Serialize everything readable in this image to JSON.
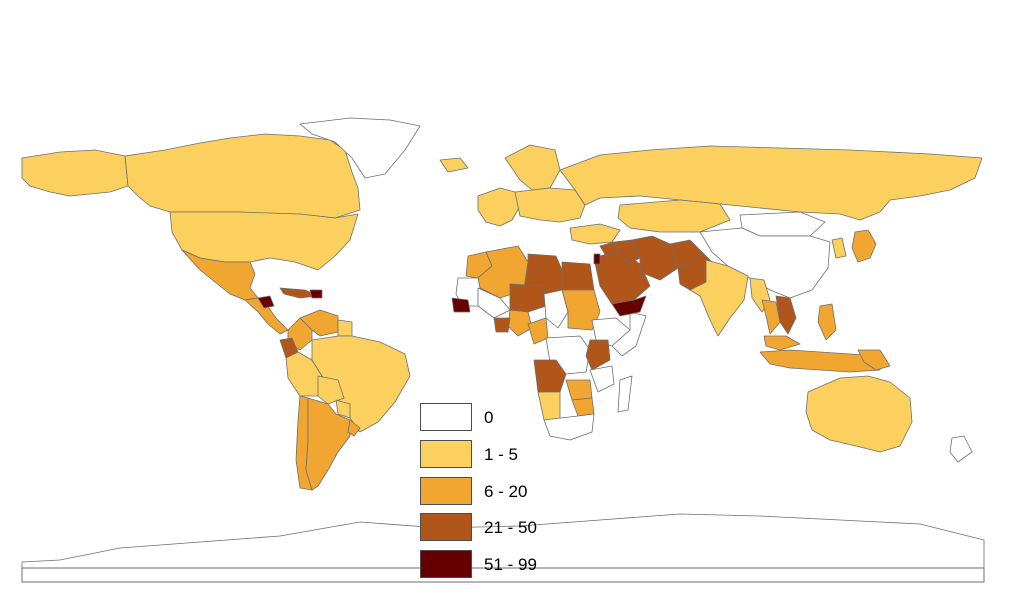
{
  "map": {
    "classes": [
      {
        "label": "0",
        "color": "#ffffff"
      },
      {
        "label": "1 - 5",
        "color": "#fcd05e"
      },
      {
        "label": "6 - 20",
        "color": "#f2a632"
      },
      {
        "label": "21 - 50",
        "color": "#b0561a"
      },
      {
        "label": "51 - 99",
        "color": "#660000"
      }
    ],
    "border_color": "#6e6e6e",
    "regions": [
      {
        "name": "Alaska",
        "class": 1
      },
      {
        "name": "Canada",
        "class": 1
      },
      {
        "name": "Greenland",
        "class": 0
      },
      {
        "name": "United States",
        "class": 1
      },
      {
        "name": "Mexico",
        "class": 2
      },
      {
        "name": "Central America",
        "class": 2
      },
      {
        "name": "Guatemala",
        "class": 4
      },
      {
        "name": "Cuba",
        "class": 3
      },
      {
        "name": "Haiti",
        "class": 4
      },
      {
        "name": "Colombia",
        "class": 2
      },
      {
        "name": "Venezuela",
        "class": 2
      },
      {
        "name": "Guyana",
        "class": 1
      },
      {
        "name": "Ecuador",
        "class": 3
      },
      {
        "name": "Peru",
        "class": 1
      },
      {
        "name": "Brazil",
        "class": 1
      },
      {
        "name": "Bolivia",
        "class": 1
      },
      {
        "name": "Paraguay",
        "class": 1
      },
      {
        "name": "Chile",
        "class": 2
      },
      {
        "name": "Argentina",
        "class": 2
      },
      {
        "name": "Uruguay",
        "class": 2
      },
      {
        "name": "Iceland",
        "class": 1
      },
      {
        "name": "Western Europe",
        "class": 1
      },
      {
        "name": "Scandinavia",
        "class": 1
      },
      {
        "name": "Eastern Europe",
        "class": 1
      },
      {
        "name": "Russia",
        "class": 1
      },
      {
        "name": "Kazakhstan",
        "class": 1
      },
      {
        "name": "Mongolia",
        "class": 0
      },
      {
        "name": "China",
        "class": 0
      },
      {
        "name": "Korea",
        "class": 1
      },
      {
        "name": "Japan",
        "class": 2
      },
      {
        "name": "Morocco",
        "class": 2
      },
      {
        "name": "Algeria",
        "class": 2
      },
      {
        "name": "Libya",
        "class": 3
      },
      {
        "name": "Egypt",
        "class": 3
      },
      {
        "name": "Mauritania",
        "class": 0
      },
      {
        "name": "Mali",
        "class": 0
      },
      {
        "name": "Senegal",
        "class": 4
      },
      {
        "name": "Niger",
        "class": 3
      },
      {
        "name": "Chad",
        "class": 0
      },
      {
        "name": "Sudan",
        "class": 2
      },
      {
        "name": "Ethiopia",
        "class": 0
      },
      {
        "name": "Somalia",
        "class": 0
      },
      {
        "name": "Nigeria",
        "class": 2
      },
      {
        "name": "Ghana",
        "class": 3
      },
      {
        "name": "Cameroon",
        "class": 2
      },
      {
        "name": "DR Congo",
        "class": 0
      },
      {
        "name": "Kenya",
        "class": 3
      },
      {
        "name": "Tanzania",
        "class": 0
      },
      {
        "name": "Angola",
        "class": 3
      },
      {
        "name": "Zambia",
        "class": 2
      },
      {
        "name": "Zimbabwe",
        "class": 2
      },
      {
        "name": "Namibia",
        "class": 1
      },
      {
        "name": "South Africa",
        "class": 0
      },
      {
        "name": "Madagascar",
        "class": 0
      },
      {
        "name": "Saudi Arabia",
        "class": 3
      },
      {
        "name": "Yemen",
        "class": 4
      },
      {
        "name": "Israel",
        "class": 4
      },
      {
        "name": "Syria",
        "class": 3
      },
      {
        "name": "Turkey",
        "class": 1
      },
      {
        "name": "Iraq",
        "class": 3
      },
      {
        "name": "Iran",
        "class": 3
      },
      {
        "name": "Afghanistan",
        "class": 3
      },
      {
        "name": "Pakistan",
        "class": 3
      },
      {
        "name": "India",
        "class": 1
      },
      {
        "name": "Myanmar",
        "class": 1
      },
      {
        "name": "Thailand",
        "class": 2
      },
      {
        "name": "Vietnam",
        "class": 3
      },
      {
        "name": "Philippines",
        "class": 2
      },
      {
        "name": "Malaysia",
        "class": 2
      },
      {
        "name": "Indonesia",
        "class": 2
      },
      {
        "name": "Papua New Guinea",
        "class": 2
      },
      {
        "name": "Australia",
        "class": 1
      },
      {
        "name": "New Zealand",
        "class": 0
      },
      {
        "name": "Antarctica",
        "class": 0
      }
    ]
  }
}
